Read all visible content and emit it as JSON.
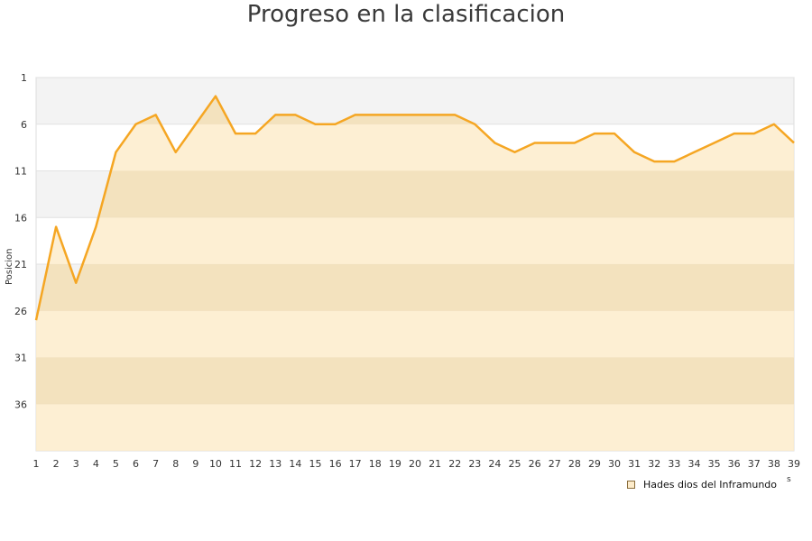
{
  "chart_data": {
    "type": "area",
    "title": "Progreso en la clasificacion",
    "xlabel": "s",
    "ylabel": "Posicion",
    "x": [
      1,
      2,
      3,
      4,
      5,
      6,
      7,
      8,
      9,
      10,
      11,
      12,
      13,
      14,
      15,
      16,
      17,
      18,
      19,
      20,
      21,
      22,
      23,
      24,
      25,
      26,
      27,
      28,
      29,
      30,
      31,
      32,
      33,
      34,
      35,
      36,
      37,
      38,
      39
    ],
    "y_ticks": [
      1,
      6,
      11,
      16,
      21,
      26,
      31,
      36
    ],
    "ylim": [
      41,
      1
    ],
    "y_inverted": true,
    "grid": true,
    "legend_position": "bottom-right",
    "series": [
      {
        "name": "Hades dios del Inframundo",
        "values": [
          27,
          17,
          23,
          17,
          9,
          6,
          5,
          9,
          6,
          3,
          7,
          7,
          5,
          5,
          6,
          6,
          5,
          5,
          5,
          5,
          5,
          5,
          6,
          8,
          9,
          8,
          8,
          8,
          7,
          7,
          9,
          10,
          10,
          9,
          8,
          7,
          7,
          6,
          8
        ],
        "color": "#f5a623",
        "fill": "#fdeccb"
      }
    ]
  }
}
